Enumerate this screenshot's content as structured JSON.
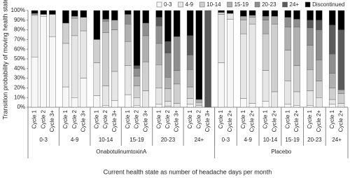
{
  "chart_data": {
    "type": "stacked_bar",
    "y_label": "Transition probability of moving health state",
    "x_label": "Current health state as number of headache days per month",
    "ylim": [
      0,
      100
    ],
    "yticks": [
      {
        "value": 0,
        "label": "0%"
      },
      {
        "value": 10,
        "label": "10%"
      },
      {
        "value": 20,
        "label": "20%"
      },
      {
        "value": 30,
        "label": "30%"
      },
      {
        "value": 40,
        "label": "40%"
      },
      {
        "value": 50,
        "label": "50%"
      },
      {
        "value": 60,
        "label": "60%"
      },
      {
        "value": 70,
        "label": "70%"
      },
      {
        "value": 80,
        "label": "80%"
      },
      {
        "value": 90,
        "label": "90%"
      },
      {
        "value": 100,
        "label": "100%"
      }
    ],
    "grid": false,
    "legend": "top",
    "groups": [
      {
        "label": "OnabotulinumtoxinA",
        "subgroups": [
          {
            "label": "0-3",
            "categories": [
              "Cycle 1",
              "Cycle 2",
              "Cycle 3+"
            ]
          },
          {
            "label": "4-9",
            "categories": [
              "Cycle 1",
              "Cycle 2",
              "Cycle 3+"
            ]
          },
          {
            "label": "10-14",
            "categories": [
              "Cycle 1",
              "Cycle 2",
              "Cycle 3+"
            ]
          },
          {
            "label": "15-19",
            "categories": [
              "Cycle 1",
              "Cycle 2",
              "Cycle 3+"
            ]
          },
          {
            "label": "20-23",
            "categories": [
              "Cycle 1",
              "Cycle 2",
              "Cycle 3+"
            ]
          },
          {
            "label": "24+",
            "categories": [
              "Cycle 1",
              "Cycle 2",
              "Cycle 3+"
            ]
          }
        ]
      },
      {
        "label": "Placebo",
        "subgroups": [
          {
            "label": "0-3",
            "categories": [
              "Cycle 1",
              "Cycle 2+"
            ]
          },
          {
            "label": "4-9",
            "categories": [
              "Cycle 1",
              "Cycle 2+"
            ]
          },
          {
            "label": "10-14",
            "categories": [
              "Cycle 1",
              "Cycle 2+"
            ]
          },
          {
            "label": "15-19",
            "categories": [
              "Cycle 1",
              "Cycle 2+"
            ]
          },
          {
            "label": "20-23",
            "categories": [
              "Cycle 1",
              "Cycle 2+"
            ]
          },
          {
            "label": "24+",
            "categories": [
              "Cycle 1",
              "Cycle 2+"
            ]
          }
        ]
      }
    ],
    "series": [
      {
        "name": "0-3",
        "color": "#f7f7f7",
        "values": [
          52,
          94,
          73,
          21,
          10,
          30,
          12,
          2,
          7,
          13,
          2,
          0,
          3,
          1,
          0,
          3,
          0,
          0,
          46,
          91,
          9,
          4,
          6,
          0,
          3,
          2,
          2,
          0,
          3,
          0
        ]
      },
      {
        "name": "4-9",
        "color": "#e6e6e6",
        "values": [
          43,
          2,
          23,
          45,
          64,
          49,
          34,
          20,
          30,
          30,
          8,
          17,
          17,
          5,
          4,
          6,
          2,
          0,
          50,
          6,
          67,
          82,
          32,
          16,
          24,
          14,
          15,
          10,
          5,
          4
        ]
      },
      {
        "name": "10-14",
        "color": "#cfcfcf",
        "values": [
          1,
          0,
          0,
          21,
          18,
          14,
          24,
          55,
          43,
          25,
          12,
          30,
          24,
          13,
          20,
          12,
          3,
          0,
          2,
          0,
          14,
          7,
          38,
          70,
          32,
          27,
          22,
          17,
          12,
          10
        ]
      },
      {
        "name": "15-19",
        "color": "#b0b0b0",
        "values": [
          1,
          0,
          0,
          0,
          2,
          0,
          0,
          12,
          10,
          18,
          10,
          27,
          22,
          12,
          14,
          18,
          3,
          0,
          0,
          0,
          4,
          2,
          14,
          8,
          24,
          40,
          25,
          22,
          15,
          4
        ]
      },
      {
        "name": "20-23",
        "color": "#8e8e8e",
        "values": [
          0,
          0,
          0,
          0,
          0,
          0,
          0,
          2,
          0,
          10,
          8,
          13,
          18,
          25,
          35,
          15,
          0,
          0,
          0,
          0,
          0,
          0,
          4,
          0,
          10,
          8,
          18,
          31,
          20,
          0
        ]
      },
      {
        "name": "24+",
        "color": "#5a5a5a",
        "values": [
          0,
          0,
          0,
          0,
          0,
          0,
          0,
          0,
          0,
          0,
          3,
          0,
          9,
          12,
          0,
          20,
          0,
          100,
          0,
          0,
          0,
          0,
          0,
          0,
          0,
          0,
          8,
          10,
          30,
          62
        ]
      },
      {
        "name": "Discontinued",
        "color": "#000000",
        "values": [
          3,
          4,
          4,
          13,
          6,
          7,
          30,
          9,
          10,
          4,
          57,
          13,
          7,
          32,
          27,
          26,
          92,
          0,
          2,
          3,
          6,
          5,
          6,
          6,
          7,
          9,
          10,
          10,
          15,
          20
        ]
      }
    ]
  }
}
